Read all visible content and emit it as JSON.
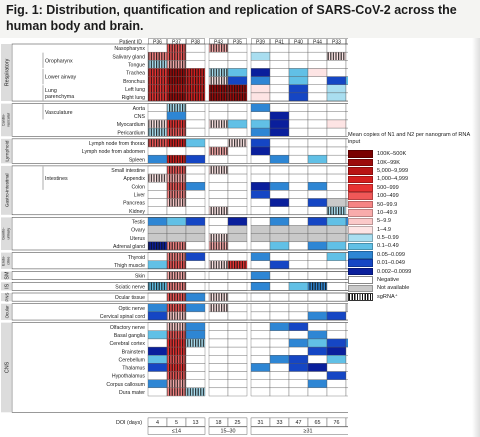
{
  "title": "Fig. 1: Distribution, quantification and replication of SARS-CoV-2 across the human body and brain.",
  "patient_header": "Patient ID",
  "doi_label": "DOI (days)",
  "legend": {
    "title": "Mean copies of N1 and N2 per nanogram of RNA input",
    "items": [
      {
        "label": "100K–500K",
        "color": "#7a0000"
      },
      {
        "label": "10K–99K",
        "color": "#9c0a0a"
      },
      {
        "label": "5,000–9,999",
        "color": "#b81414"
      },
      {
        "label": "1,000–4,999",
        "color": "#d41e1e"
      },
      {
        "label": "500–999",
        "color": "#e83232"
      },
      {
        "label": "100–499",
        "color": "#f05858"
      },
      {
        "label": "50–99.9",
        "color": "#f58484"
      },
      {
        "label": "10–49.9",
        "color": "#f8abab"
      },
      {
        "label": "5–9.9",
        "color": "#fbc9c9"
      },
      {
        "label": "1–4.9",
        "color": "#fde4e4"
      },
      {
        "label": "0.5–0.99",
        "color": "#a9def0"
      },
      {
        "label": "0.1–0.49",
        "color": "#61c0e6"
      },
      {
        "label": "0.05–0.099",
        "color": "#2e86d4"
      },
      {
        "label": "0.01–0.049",
        "color": "#1546c4"
      },
      {
        "label": "0.002–0.0099",
        "color": "#0a1f9c"
      },
      {
        "label": "Negative",
        "color": "#ffffff"
      },
      {
        "label": "Not available",
        "color": "#c9c9c9"
      },
      {
        "label": "sgRNA⁺",
        "color": "hatch"
      }
    ]
  },
  "chart_data": {
    "type": "heatmap",
    "patients": [
      "P36",
      "P37",
      "P38",
      "P43",
      "P35",
      "P39",
      "P41",
      "P40",
      "P44",
      "P33",
      "P42"
    ],
    "doi": [
      "4",
      "5",
      "13",
      "18",
      "25",
      "31",
      "33",
      "47",
      "65",
      "76",
      "230"
    ],
    "doi_groups": [
      {
        "label": "≤14",
        "patients": [
          "P36",
          "P37",
          "P38"
        ]
      },
      {
        "label": "15–30",
        "patients": [
          "P43",
          "P35"
        ]
      },
      {
        "label": "≥31",
        "patients": [
          "P39",
          "P41",
          "P40",
          "P44",
          "P33",
          "P42"
        ]
      }
    ],
    "systems": [
      {
        "label": "Respiratory",
        "rows": 7
      },
      {
        "label": "Cardio-vascular",
        "rows": 4
      },
      {
        "label": "Lymphoid",
        "rows": 3
      },
      {
        "label": "Gastro-intestinal",
        "rows": 6
      },
      {
        "label": "Genito-urinary",
        "rows": 4
      },
      {
        "label": "Endo-crine",
        "rows": 2
      },
      {
        "label": "SM",
        "rows": 1
      },
      {
        "label": "IS",
        "rows": 1
      },
      {
        "label": "PNS",
        "rows": 1
      },
      {
        "label": "Ocular",
        "rows": 2
      },
      {
        "label": "CNS",
        "rows": 11
      }
    ],
    "groups": [
      {
        "label": "Oropharynx",
        "rows": [
          1,
          2
        ]
      },
      {
        "label": "Lower airway",
        "rows": [
          3,
          4
        ]
      },
      {
        "label": "Lung parenchyma",
        "rows": [
          5,
          6
        ]
      },
      {
        "label": "Vasculature",
        "rows": [
          7,
          8
        ]
      },
      {
        "label": "Intestines",
        "rows": [
          14,
          15,
          16
        ]
      }
    ],
    "rows": [
      {
        "tissue": "Nasopharynx",
        "values": [
          "N",
          "h5",
          "N",
          "h7",
          "N",
          "N",
          "N",
          "N",
          "N",
          "N",
          "N"
        ]
      },
      {
        "tissue": "Salivary gland",
        "values": [
          "h6",
          "h5",
          "N",
          "N",
          "N",
          "10",
          "N",
          "N",
          "N",
          "h9",
          "N"
        ]
      },
      {
        "tissue": "Tongue",
        "values": [
          "h10",
          "h7",
          "N",
          "N",
          "N",
          "N",
          "N",
          "N",
          "N",
          "N",
          "N"
        ]
      },
      {
        "tissue": "Trachea",
        "values": [
          "h4",
          "h1",
          "h3",
          "h10",
          "11",
          "14",
          "N",
          "11",
          "9",
          "N",
          "N"
        ]
      },
      {
        "tissue": "Bronchus",
        "values": [
          "h4",
          "h1",
          "h3",
          "h9",
          "13",
          "12",
          "N",
          "11",
          "N",
          "13",
          "11"
        ]
      },
      {
        "tissue": "Left lung",
        "values": [
          "h4",
          "h2",
          "h3",
          "h1",
          "h1",
          "9",
          "N",
          "13",
          "N",
          "10",
          "N"
        ]
      },
      {
        "tissue": "Right lung",
        "values": [
          "h4",
          "h1",
          "h3",
          "h1",
          "h1",
          "9",
          "N",
          "13",
          "N",
          "10",
          "N"
        ]
      },
      {
        "tissue": "Aorta",
        "values": [
          "N",
          "h10",
          "N",
          "N",
          "N",
          "12",
          "N",
          "N",
          "N",
          "N",
          "N"
        ]
      },
      {
        "tissue": "CNS",
        "values": [
          "N",
          "12",
          "N",
          "N",
          "N",
          "N",
          "14",
          "N",
          "N",
          "N",
          "N"
        ]
      },
      {
        "tissue": "Myocardium",
        "values": [
          "h9",
          "h4",
          "N",
          "h9",
          "11",
          "11",
          "14",
          "N",
          "N",
          "9",
          "N"
        ]
      },
      {
        "tissue": "Pericardium",
        "values": [
          "h10",
          "h5",
          "N",
          "N",
          "N",
          "12",
          "14",
          "N",
          "N",
          "N",
          "N"
        ]
      },
      {
        "tissue": "Lymph node from thorax",
        "values": [
          "h5",
          "h3",
          "11",
          "N",
          "h9",
          "13",
          "N",
          "N",
          "N",
          "N",
          "N"
        ]
      },
      {
        "tissue": "Lymph node from abdomen",
        "values": [
          "N",
          "N",
          "N",
          "h7",
          "N",
          "14",
          "N",
          "N",
          "N",
          "N",
          "N"
        ]
      },
      {
        "tissue": "Spleen",
        "values": [
          "12",
          "h3",
          "13",
          "N",
          "N",
          "N",
          "12",
          "N",
          "11",
          "N",
          "N"
        ]
      },
      {
        "tissue": "Small intestine",
        "values": [
          "N",
          "h5",
          "N",
          "h9",
          "N",
          "N",
          "N",
          "N",
          "N",
          "N",
          "N"
        ]
      },
      {
        "tissue": "Appendix",
        "values": [
          "h9",
          "h7",
          "N",
          "N",
          "N",
          "N",
          "N",
          "N",
          "N",
          "N",
          "N"
        ]
      },
      {
        "tissue": "Colon",
        "values": [
          "N",
          "h5",
          "12",
          "N",
          "N",
          "14",
          "12",
          "N",
          "12",
          "N",
          "N"
        ]
      },
      {
        "tissue": "Liver",
        "values": [
          "N",
          "h6",
          "N",
          "N",
          "N",
          "13",
          "N",
          "N",
          "N",
          "N",
          "N"
        ]
      },
      {
        "tissue": "Pancreas",
        "values": [
          "N",
          "h8",
          "N",
          "N",
          "N",
          "N",
          "14",
          "N",
          "13",
          "NA",
          "NA"
        ]
      },
      {
        "tissue": "Kidney",
        "values": [
          "N",
          "N",
          "N",
          "h9",
          "N",
          "N",
          "N",
          "N",
          "N",
          "h10",
          "N"
        ]
      },
      {
        "tissue": "Testis",
        "values": [
          "12",
          "11",
          "13",
          "N",
          "14",
          "N",
          "12",
          "N",
          "13",
          "11",
          "12"
        ]
      },
      {
        "tissue": "Ovary",
        "values": [
          "NA",
          "NA",
          "NA",
          "N",
          "NA",
          "NA",
          "NA",
          "NA",
          "NA",
          "NA",
          "NA"
        ]
      },
      {
        "tissue": "Uterus",
        "values": [
          "NA",
          "NA",
          "NA",
          "h9",
          "NA",
          "NA",
          "NA",
          "NA",
          "NA",
          "NA",
          "NA"
        ]
      },
      {
        "tissue": "Adrenal gland",
        "values": [
          "h14",
          "h6",
          "N",
          "h7",
          "N",
          "N",
          "11",
          "N",
          "12",
          "11",
          "N"
        ]
      },
      {
        "tissue": "Thyroid",
        "values": [
          "N",
          "h6",
          "13",
          "N",
          "N",
          "12",
          "N",
          "N",
          "N",
          "11",
          "N"
        ]
      },
      {
        "tissue": "Thigh muscle",
        "values": [
          "11",
          "h5",
          "N",
          "h9",
          "h4",
          "N",
          "13",
          "N",
          "N",
          "N",
          "N"
        ]
      },
      {
        "tissue": "Skin",
        "values": [
          "N",
          "h7",
          "N",
          "N",
          "N",
          "12",
          "N",
          "N",
          "N",
          "N",
          "N"
        ]
      },
      {
        "tissue": "Sciatic nerve",
        "values": [
          "h11",
          "h6",
          "N",
          "N",
          "N",
          "12",
          "N",
          "11",
          "h12",
          "N",
          "N"
        ]
      },
      {
        "tissue": "Ocular tissue",
        "values": [
          "N",
          "h5",
          "12",
          "h9",
          "N",
          "N",
          "N",
          "N",
          "N",
          "N",
          "NA"
        ]
      },
      {
        "tissue": "Optic nerve",
        "values": [
          "12",
          "h5",
          "12",
          "h9",
          "N",
          "N",
          "N",
          "N",
          "N",
          "N",
          "NA"
        ]
      },
      {
        "tissue": "Cervical spinal cord",
        "values": [
          "13",
          "h8",
          "N",
          "N",
          "N",
          "N",
          "N",
          "N",
          "12",
          "13",
          "N"
        ]
      },
      {
        "tissue": "Olfactory nerve",
        "values": [
          "N",
          "h8",
          "12",
          "N",
          "N",
          "N",
          "12",
          "13",
          "N",
          "N",
          "N"
        ]
      },
      {
        "tissue": "Basal ganglia",
        "values": [
          "11",
          "h5",
          "12",
          "N",
          "N",
          "N",
          "N",
          "N",
          "12",
          "N",
          "N"
        ]
      },
      {
        "tissue": "Cerebral cortex",
        "values": [
          "N",
          "h4",
          "h10",
          "N",
          "N",
          "N",
          "N",
          "12",
          "11",
          "13",
          "12"
        ]
      },
      {
        "tissue": "Brainstem",
        "values": [
          "14",
          "h4",
          "N",
          "N",
          "N",
          "N",
          "N",
          "N",
          "13",
          "14",
          "N"
        ]
      },
      {
        "tissue": "Cerebellum",
        "values": [
          "11",
          "h5",
          "N",
          "N",
          "N",
          "N",
          "12",
          "13",
          "N",
          "11",
          "N"
        ]
      },
      {
        "tissue": "Thalamus",
        "values": [
          "13",
          "h4",
          "N",
          "N",
          "N",
          "12",
          "N",
          "13",
          "14",
          "N",
          "N"
        ]
      },
      {
        "tissue": "Hypothalamus",
        "values": [
          "N",
          "h5",
          "N",
          "N",
          "N",
          "N",
          "N",
          "N",
          "N",
          "13",
          "N"
        ]
      },
      {
        "tissue": "Corpus callosum",
        "values": [
          "12",
          "h7",
          "N",
          "N",
          "N",
          "N",
          "N",
          "N",
          "12",
          "N",
          "N"
        ]
      },
      {
        "tissue": "Dura mater",
        "values": [
          "N",
          "h6",
          "h10",
          "N",
          "N",
          "N",
          "N",
          "N",
          "N",
          "N",
          "N"
        ]
      }
    ],
    "value_encoding_note": ""
  }
}
